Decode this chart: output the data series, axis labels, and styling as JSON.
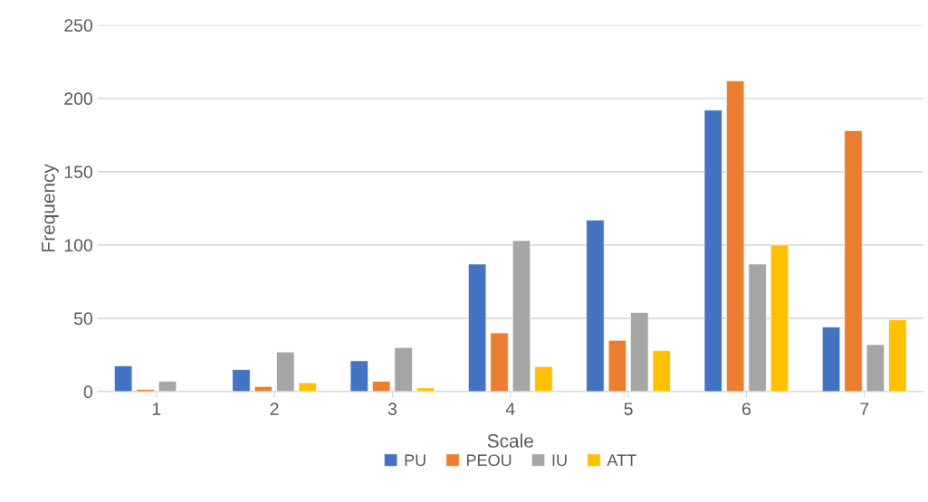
{
  "chart_data": {
    "type": "bar",
    "xlabel": "Scale",
    "ylabel": "Frequency",
    "categories": [
      "1",
      "2",
      "3",
      "4",
      "5",
      "6",
      "7"
    ],
    "series": [
      {
        "name": "PU",
        "color": "#4472c4",
        "values": [
          17.5,
          15,
          21,
          87,
          117,
          192,
          44
        ]
      },
      {
        "name": "PEOU",
        "color": "#ed7d31",
        "values": [
          1.5,
          3.5,
          7,
          40,
          35,
          212,
          178
        ]
      },
      {
        "name": "IU",
        "color": "#a5a5a5",
        "values": [
          7,
          27,
          30,
          103,
          54,
          87,
          32
        ]
      },
      {
        "name": "ATT",
        "color": "#ffc000",
        "values": [
          null,
          6,
          2.5,
          17,
          28,
          100,
          49
        ]
      }
    ],
    "ylim": [
      0,
      250
    ],
    "yticks": [
      0,
      50,
      100,
      150,
      200,
      250
    ],
    "grid": "y",
    "legend": "bottom"
  }
}
